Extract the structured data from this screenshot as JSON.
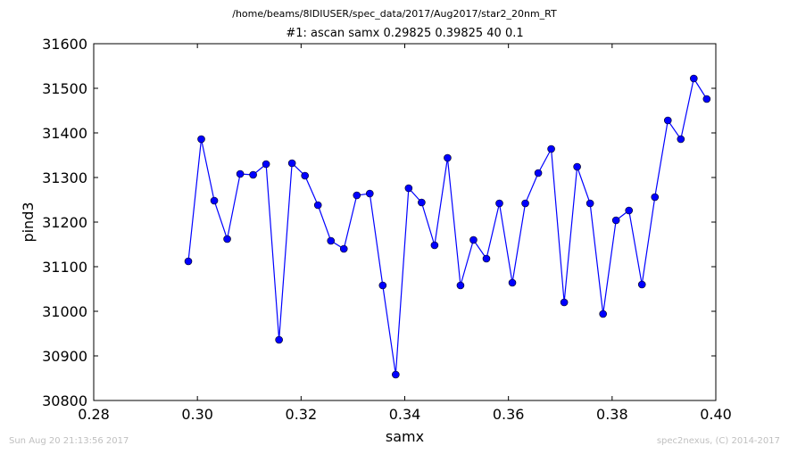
{
  "header": {
    "file_path": "/home/beams/8IDIUSER/spec_data/2017/Aug2017/star2_20nm_RT",
    "scan_title": "#1: ascan  samx 0.29825 0.39825  40 0.1"
  },
  "footer": {
    "timestamp": "Sun Aug 20 21:13:56 2017",
    "credit": "spec2nexus, (C) 2014-2017"
  },
  "colors": {
    "series": "#0000ff",
    "axes": "#000000",
    "footer_text": "#bfbfbf"
  },
  "chart_data": {
    "type": "line",
    "title": "#1: ascan  samx 0.29825 0.39825  40 0.1",
    "xlabel": "samx",
    "ylabel": "pind3",
    "xlim": [
      0.28,
      0.4
    ],
    "ylim": [
      30800,
      31600
    ],
    "xticks": [
      "0.28",
      "0.30",
      "0.32",
      "0.34",
      "0.36",
      "0.38",
      "0.40"
    ],
    "yticks": [
      "30800",
      "30900",
      "31000",
      "31100",
      "31200",
      "31300",
      "31400",
      "31500",
      "31600"
    ],
    "xtick_values": [
      0.28,
      0.3,
      0.32,
      0.34,
      0.36,
      0.38,
      0.4
    ],
    "ytick_values": [
      30800,
      30900,
      31000,
      31100,
      31200,
      31300,
      31400,
      31500,
      31600
    ],
    "grid": false,
    "legend": "none",
    "marker": "circle",
    "series": [
      {
        "x": [
          0.29825,
          0.30075,
          0.30325,
          0.30575,
          0.30825,
          0.31075,
          0.31325,
          0.31575,
          0.31825,
          0.32075,
          0.32325,
          0.32575,
          0.32825,
          0.33075,
          0.33325,
          0.33575,
          0.33825,
          0.34075,
          0.34325,
          0.34575,
          0.34825,
          0.35075,
          0.35325,
          0.35575,
          0.35825,
          0.36075,
          0.36325,
          0.36575,
          0.36825,
          0.37075,
          0.37325,
          0.37575,
          0.37825,
          0.38075,
          0.38325,
          0.38575,
          0.38825,
          0.39075,
          0.39325,
          0.39575,
          0.39825
        ],
        "y": [
          31112,
          31386,
          31248,
          31162,
          31308,
          31306,
          31330,
          30936,
          31332,
          31304,
          31238,
          31158,
          31140,
          31260,
          31264,
          31058,
          30858,
          31276,
          31244,
          31148,
          31344,
          31058,
          31160,
          31118,
          31242,
          31064,
          31242,
          31310,
          31364,
          31020,
          31324,
          31242,
          30994,
          31204,
          31226,
          31060,
          31256,
          31428,
          31386,
          31522,
          31476
        ]
      }
    ]
  }
}
